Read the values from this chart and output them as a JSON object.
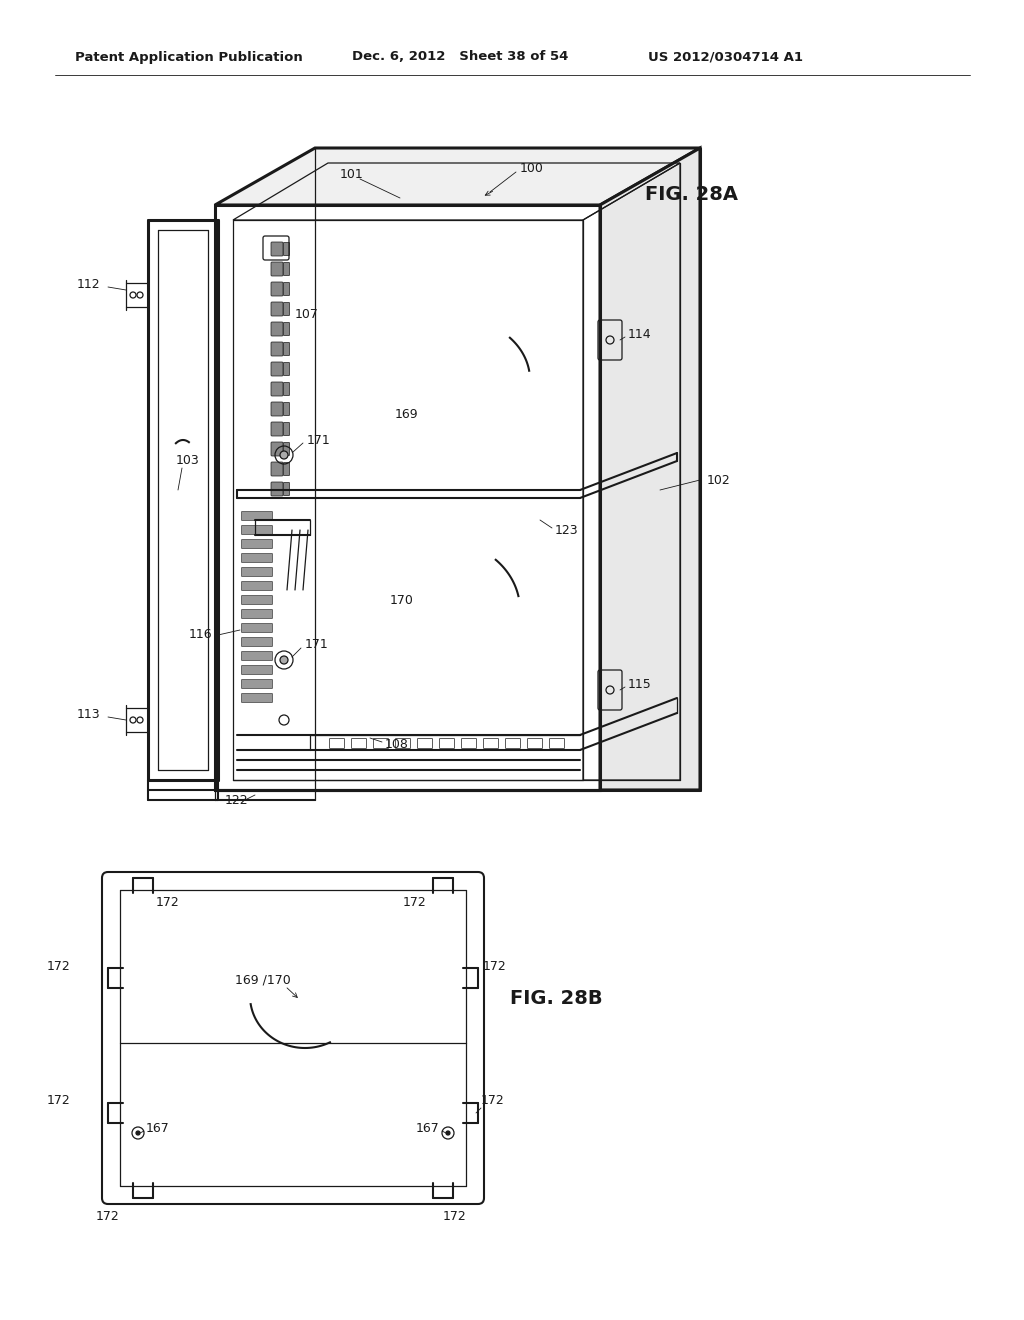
{
  "bg_color": "#ffffff",
  "header_left": "Patent Application Publication",
  "header_center": "Dec. 6, 2012   Sheet 38 of 54",
  "header_right": "US 2012/0304714 A1",
  "fig28a_label": "FIG. 28A",
  "fig28b_label": "FIG. 28B",
  "line_color": "#1a1a1a",
  "text_color": "#1a1a1a",
  "lw_thick": 2.2,
  "lw_main": 1.5,
  "lw_thin": 0.9,
  "lw_hair": 0.6
}
